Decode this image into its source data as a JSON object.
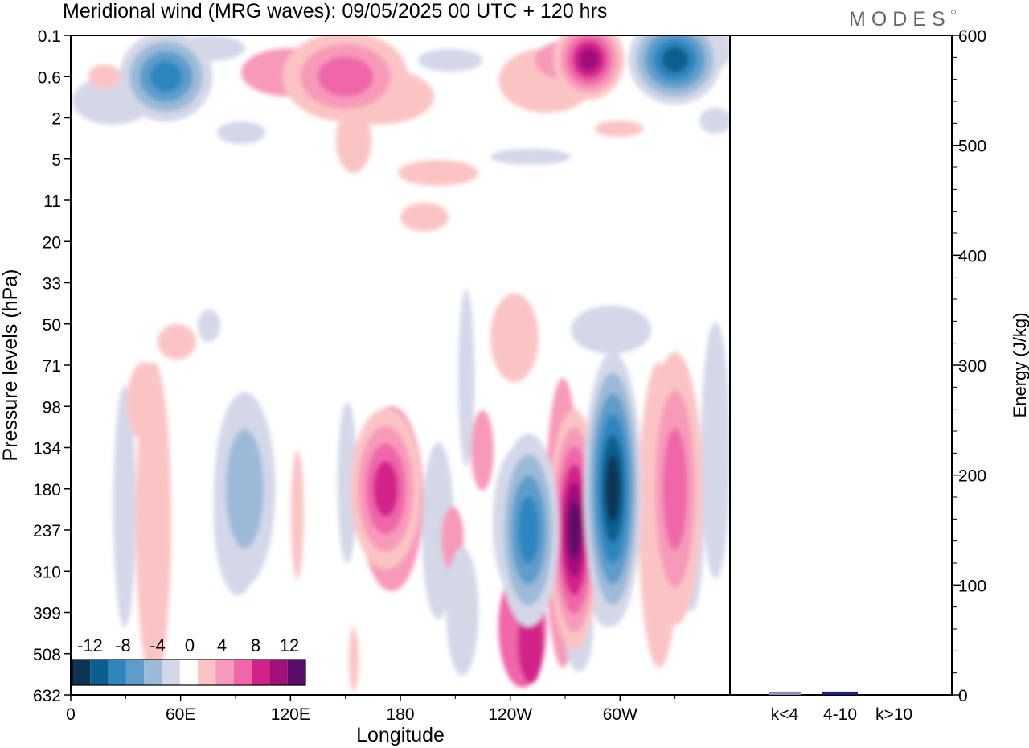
{
  "title": "Meridional wind (MRG waves):  09/05/2025  00 UTC  + 120 hrs",
  "logo_text": "MODES",
  "chart_data": [
    {
      "type": "heatmap",
      "title": "Meridional wind (MRG waves):  09/05/2025  00 UTC  + 120 hrs",
      "xlabel": "Longitude",
      "ylabel": "Pressure levels (hPa)",
      "x_ticks": [
        "0",
        "60E",
        "120E",
        "180",
        "120W",
        "60W"
      ],
      "x_tick_degrees": [
        0,
        60,
        120,
        180,
        240,
        300
      ],
      "x_range_degrees": [
        0,
        360
      ],
      "y_ticks": [
        "0.1",
        "0.6",
        "2",
        "5",
        "11",
        "20",
        "33",
        "50",
        "71",
        "98",
        "134",
        "180",
        "237",
        "310",
        "399",
        "508",
        "632"
      ],
      "colorbar": {
        "labels": [
          "-12",
          "-8",
          "-4",
          "0",
          "4",
          "8",
          "12"
        ],
        "bin_edges": [
          -14,
          -12,
          -10,
          -8,
          -6,
          -4,
          -2,
          2,
          4,
          6,
          8,
          10,
          12,
          14
        ],
        "colors": [
          "#0d3553",
          "#0b5e8e",
          "#2f86bf",
          "#5d9ccb",
          "#9bbad8",
          "#d3d7e8",
          "#ffffff",
          "#fbc4c4",
          "#f79ab9",
          "#ef66a9",
          "#d3218a",
          "#a1117a",
          "#5b0d6b"
        ]
      },
      "features": [
        {
          "name": "strong positive core",
          "lon": 275,
          "level": "237",
          "value": 13
        },
        {
          "name": "strong negative core",
          "lon": 296,
          "level": "180",
          "value": -13
        },
        {
          "name": "negative core",
          "lon": 250,
          "level": "237",
          "value": -10
        },
        {
          "name": "positive core",
          "lon": 172,
          "level": "180",
          "value": 9
        },
        {
          "name": "negative core",
          "lon": 95,
          "level": "180",
          "value": -5
        },
        {
          "name": "positive band",
          "lon": 330,
          "level": "180",
          "value": 8
        },
        {
          "name": "positive core aloft",
          "lon": 283,
          "level": "0.1",
          "value": 12
        },
        {
          "name": "negative core aloft",
          "lon": 330,
          "level": "0.1",
          "value": -12
        },
        {
          "name": "negative core aloft",
          "lon": 52,
          "level": "0.6",
          "value": -10
        },
        {
          "name": "positive maximum aloft",
          "lon": 150,
          "level": "0.6",
          "value": 8
        }
      ]
    },
    {
      "type": "bar",
      "categories": [
        "k<4",
        "4-10",
        "k>10"
      ],
      "values": [
        3,
        3,
        0
      ],
      "ylabel": "Energy (J/kg)",
      "ylim": [
        0,
        600
      ],
      "y_ticks": [
        "0",
        "100",
        "200",
        "300",
        "400",
        "500",
        "600"
      ],
      "bar_color": "#1f1f7a"
    }
  ]
}
